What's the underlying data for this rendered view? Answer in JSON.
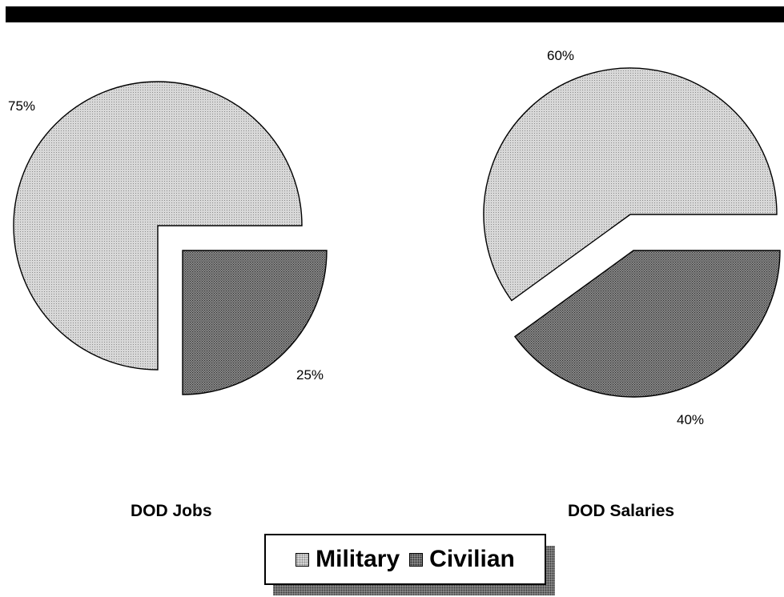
{
  "chart_data": [
    {
      "type": "pie",
      "title": "DOD Jobs",
      "slices": [
        {
          "label": "Military",
          "value": 75,
          "value_label": "75%",
          "exploded": false
        },
        {
          "label": "Civilian",
          "value": 25,
          "value_label": "25%",
          "exploded": true
        }
      ]
    },
    {
      "type": "pie",
      "title": "DOD Salaries",
      "slices": [
        {
          "label": "Military",
          "value": 60,
          "value_label": "60%",
          "exploded": false
        },
        {
          "label": "Civilian",
          "value": 40,
          "value_label": "40%",
          "exploded": true
        }
      ]
    }
  ],
  "legend": {
    "placement": "bottom-center",
    "items": [
      {
        "label": "Military",
        "pattern": "light-stipple"
      },
      {
        "label": "Civilian",
        "pattern": "dark-stipple"
      }
    ]
  },
  "colors": {
    "military_fill": "#d8d8d8",
    "military_dots": "#8a8a8a",
    "civilian_fill": "#8f8f8f",
    "civilian_dots": "#2e2e2e",
    "outline": "#000000",
    "header_bar": "#000000"
  }
}
